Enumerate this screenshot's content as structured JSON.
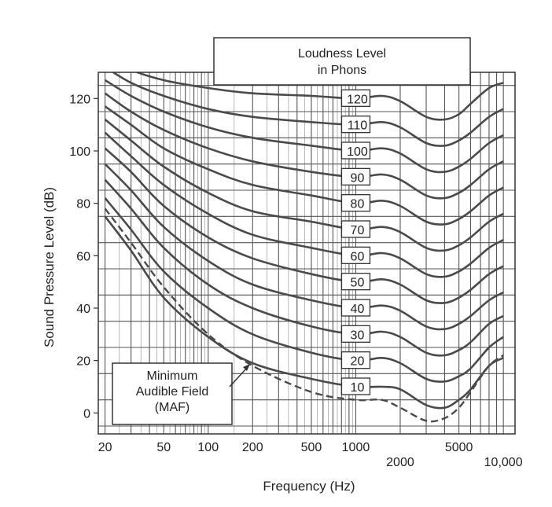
{
  "chart_data": {
    "type": "line",
    "title": "Loudness Level in Phons",
    "title_lines": [
      "Loudness Level",
      "in Phons"
    ],
    "xlabel": "Frequency (Hz)",
    "ylabel": "Sound Pressure Level (dB)",
    "x_scale": "log",
    "xlim": [
      18,
      12000
    ],
    "ylim": [
      -8,
      130
    ],
    "grid": true,
    "x_ticks": [
      {
        "value": 20,
        "label": "20",
        "row": 0
      },
      {
        "value": 50,
        "label": "50",
        "row": 0
      },
      {
        "value": 100,
        "label": "100",
        "row": 0
      },
      {
        "value": 200,
        "label": "200",
        "row": 0
      },
      {
        "value": 500,
        "label": "500",
        "row": 0
      },
      {
        "value": 1000,
        "label": "1000",
        "row": 0
      },
      {
        "value": 2000,
        "label": "2000",
        "row": 1
      },
      {
        "value": 5000,
        "label": "5000",
        "row": 0
      },
      {
        "value": 10000,
        "label": "10,000",
        "row": 1
      }
    ],
    "y_ticks": [
      {
        "value": 0,
        "label": "0"
      },
      {
        "value": 20,
        "label": "20"
      },
      {
        "value": 40,
        "label": "40"
      },
      {
        "value": 60,
        "label": "60"
      },
      {
        "value": 80,
        "label": "80"
      },
      {
        "value": 100,
        "label": "100"
      },
      {
        "value": 120,
        "label": "120"
      }
    ],
    "x": [
      20,
      30,
      50,
      100,
      200,
      500,
      1000,
      1500,
      2000,
      3000,
      4000,
      5000,
      6000,
      8000,
      10000
    ],
    "series": [
      {
        "name": "10",
        "values": [
          75,
          62,
          44,
          29,
          19,
          13,
          10,
          10,
          9,
          3,
          2,
          5,
          9,
          18,
          21
        ]
      },
      {
        "name": "20",
        "values": [
          82,
          70,
          54,
          40,
          30,
          23,
          20,
          21,
          19,
          13,
          12,
          14,
          17,
          25,
          29
        ]
      },
      {
        "name": "30",
        "values": [
          89,
          78,
          63,
          49,
          40,
          33,
          30,
          31,
          29,
          23,
          22,
          24,
          27,
          34,
          37
        ]
      },
      {
        "name": "40",
        "values": [
          95,
          85,
          71,
          58,
          49,
          43,
          40,
          41,
          39,
          33,
          32,
          34,
          37,
          43,
          46
        ]
      },
      {
        "name": "50",
        "values": [
          101,
          92,
          79,
          67,
          59,
          53,
          50,
          51,
          49,
          43,
          42,
          44,
          47,
          53,
          56
        ]
      },
      {
        "name": "60",
        "values": [
          107,
          98,
          87,
          76,
          68,
          63,
          60,
          61,
          59,
          53,
          52,
          54,
          57,
          63,
          66
        ]
      },
      {
        "name": "70",
        "values": [
          112,
          104,
          94,
          84,
          77,
          73,
          70,
          71,
          69,
          63,
          62,
          64,
          67,
          73,
          76
        ]
      },
      {
        "name": "80",
        "values": [
          117,
          110,
          101,
          93,
          87,
          83,
          80,
          81,
          79,
          73,
          72,
          74,
          77,
          83,
          86
        ]
      },
      {
        "name": "90",
        "values": [
          122,
          115,
          108,
          101,
          96,
          92,
          90,
          91,
          89,
          83,
          82,
          84,
          87,
          93,
          96
        ]
      },
      {
        "name": "100",
        "values": [
          127,
          121,
          115,
          109,
          105,
          102,
          100,
          101,
          99,
          93,
          92,
          94,
          97,
          103,
          106
        ]
      },
      {
        "name": "110",
        "values": [
          132,
          126,
          121,
          116,
          113,
          111,
          110,
          111,
          109,
          103,
          102,
          104,
          107,
          113,
          116
        ]
      },
      {
        "name": "120",
        "values": [
          137,
          131,
          127,
          124,
          122,
          121,
          120,
          121,
          119,
          113,
          112,
          114,
          118,
          124,
          126
        ]
      }
    ],
    "maf": {
      "label_lines": [
        "Minimum",
        "Audible Field",
        "(MAF)"
      ],
      "x": [
        20,
        30,
        50,
        100,
        200,
        500,
        1000,
        1500,
        2000,
        3000,
        4000,
        5000,
        6000,
        8000,
        10000
      ],
      "values": [
        78,
        65,
        48,
        30,
        18,
        8,
        5,
        5,
        2,
        -3,
        -2,
        2,
        8,
        18,
        22
      ]
    },
    "label_frequency": 1000
  }
}
